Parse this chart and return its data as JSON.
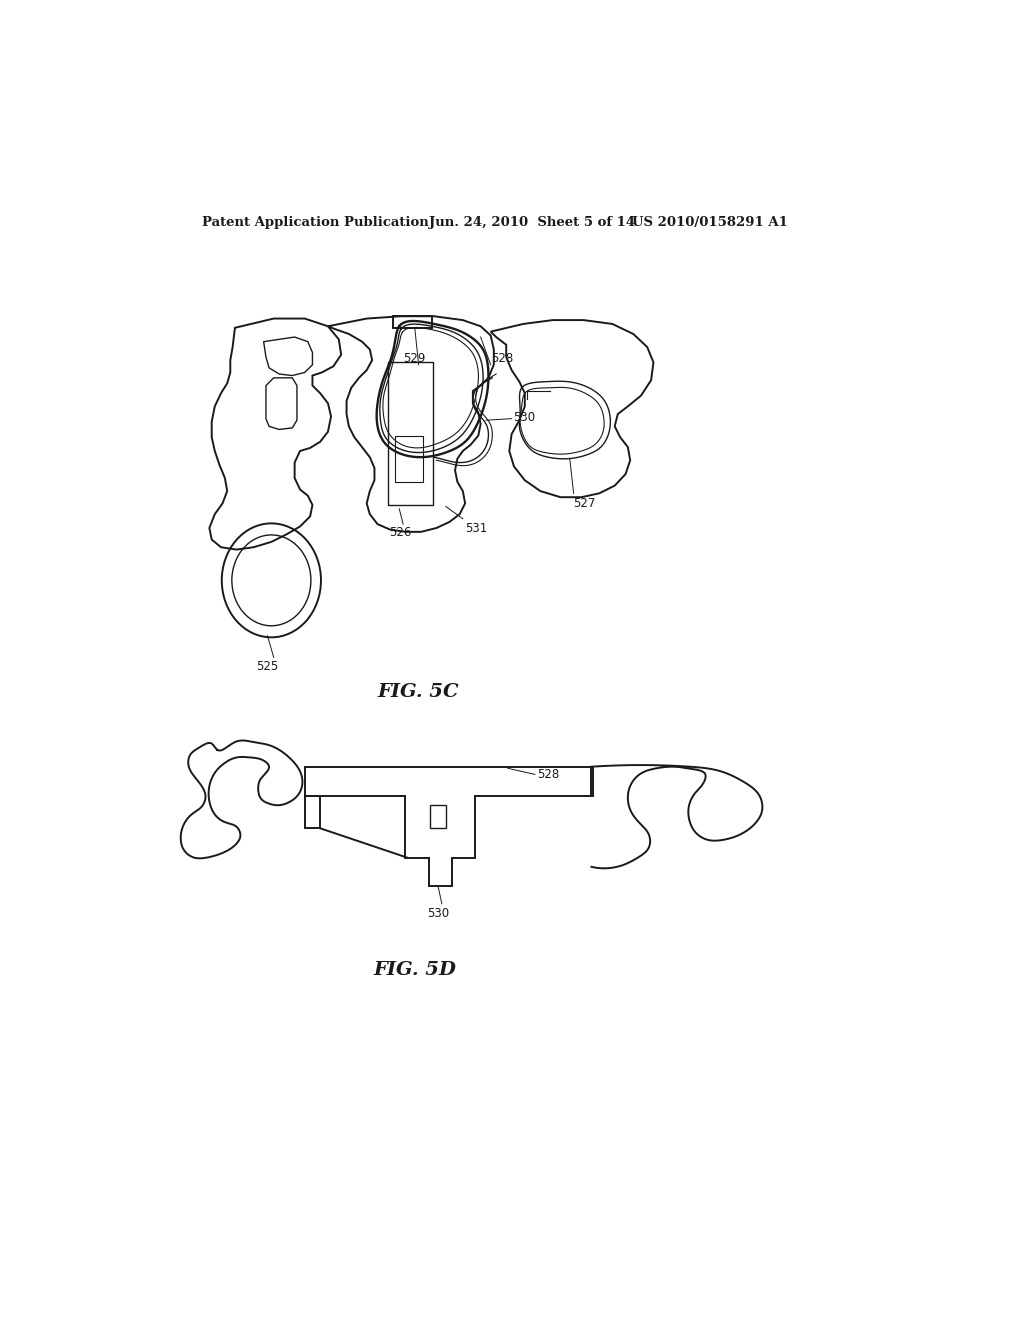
{
  "background_color": "#ffffff",
  "header_text": "Patent Application Publication",
  "header_date": "Jun. 24, 2010  Sheet 5 of 14",
  "header_patent": "US 2010/0158291 A1",
  "fig5c_label": "FIG. 5C",
  "fig5d_label": "FIG. 5D",
  "line_color": "#1a1a1a",
  "lw_main": 1.4,
  "lw_thin": 1.0
}
